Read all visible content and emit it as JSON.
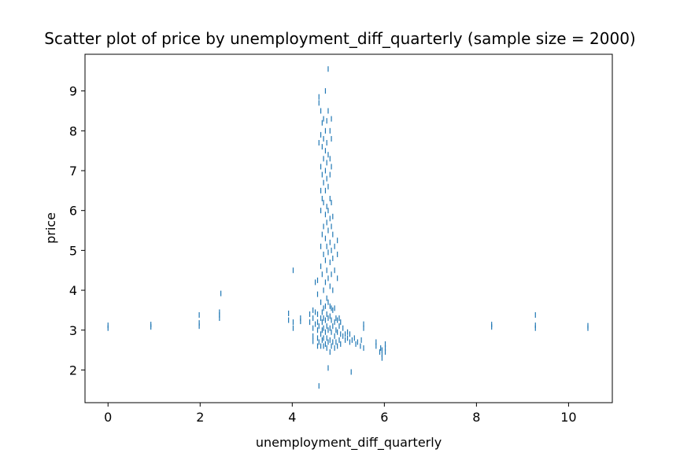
{
  "chart_data": {
    "type": "scatter",
    "title": "Scatter plot of price by unemployment_diff_quarterly (sample size = 2000)",
    "xlabel": "unemployment_diff_quarterly",
    "ylabel": "price",
    "xlim": [
      -0.5,
      10.95
    ],
    "ylim": [
      1.18,
      9.92
    ],
    "xticks": [
      0,
      2,
      4,
      6,
      8,
      10
    ],
    "yticks": [
      2,
      3,
      4,
      5,
      6,
      7,
      8,
      9
    ],
    "grid": false,
    "legend": "none",
    "marker": "|",
    "colors": {
      "points": "#1f77b4",
      "axes": "#000000"
    },
    "series": [
      {
        "points": [
          [
            0.0,
            3.05
          ],
          [
            0.0,
            3.12
          ],
          [
            0.93,
            3.08
          ],
          [
            0.93,
            3.14
          ],
          [
            1.98,
            3.1
          ],
          [
            1.98,
            3.18
          ],
          [
            1.98,
            3.38
          ],
          [
            2.42,
            3.3
          ],
          [
            2.42,
            3.38
          ],
          [
            2.42,
            3.45
          ],
          [
            2.45,
            3.92
          ],
          [
            3.92,
            3.25
          ],
          [
            3.92,
            3.42
          ],
          [
            4.02,
            3.05
          ],
          [
            4.02,
            3.2
          ],
          [
            4.02,
            4.5
          ],
          [
            4.18,
            3.22
          ],
          [
            4.18,
            3.3
          ],
          [
            4.38,
            3.4
          ],
          [
            4.38,
            3.2
          ],
          [
            4.45,
            2.72
          ],
          [
            4.45,
            2.85
          ],
          [
            4.45,
            3.05
          ],
          [
            4.45,
            3.3
          ],
          [
            4.45,
            3.5
          ],
          [
            4.5,
            3.15
          ],
          [
            4.5,
            3.45
          ],
          [
            4.5,
            4.2
          ],
          [
            4.55,
            2.6
          ],
          [
            4.55,
            2.8
          ],
          [
            4.55,
            3.0
          ],
          [
            4.55,
            3.2
          ],
          [
            4.55,
            3.4
          ],
          [
            4.55,
            3.9
          ],
          [
            4.55,
            4.25
          ],
          [
            4.58,
            1.6
          ],
          [
            4.58,
            2.7
          ],
          [
            4.58,
            3.1
          ],
          [
            4.58,
            7.7
          ],
          [
            4.58,
            8.7
          ],
          [
            4.58,
            8.85
          ],
          [
            4.62,
            2.6
          ],
          [
            4.62,
            2.9
          ],
          [
            4.62,
            3.3
          ],
          [
            4.62,
            3.7
          ],
          [
            4.62,
            4.6
          ],
          [
            4.62,
            5.1
          ],
          [
            4.62,
            6.0
          ],
          [
            4.62,
            6.5
          ],
          [
            4.62,
            7.1
          ],
          [
            4.62,
            7.9
          ],
          [
            4.62,
            8.5
          ],
          [
            4.65,
            2.75
          ],
          [
            4.65,
            3.0
          ],
          [
            4.65,
            3.2
          ],
          [
            4.65,
            3.45
          ],
          [
            4.65,
            4.4
          ],
          [
            4.65,
            5.4
          ],
          [
            4.65,
            6.3
          ],
          [
            4.65,
            6.9
          ],
          [
            4.65,
            7.6
          ],
          [
            4.65,
            8.2
          ],
          [
            4.68,
            2.6
          ],
          [
            4.68,
            2.8
          ],
          [
            4.68,
            3.05
          ],
          [
            4.68,
            3.3
          ],
          [
            4.68,
            3.55
          ],
          [
            4.68,
            4.0
          ],
          [
            4.68,
            4.9
          ],
          [
            4.68,
            5.6
          ],
          [
            4.68,
            6.2
          ],
          [
            4.68,
            6.7
          ],
          [
            4.68,
            7.3
          ],
          [
            4.68,
            7.8
          ],
          [
            4.68,
            8.3
          ],
          [
            4.72,
            2.65
          ],
          [
            4.72,
            2.95
          ],
          [
            4.72,
            3.25
          ],
          [
            4.72,
            3.6
          ],
          [
            4.72,
            4.2
          ],
          [
            4.72,
            4.75
          ],
          [
            4.72,
            5.3
          ],
          [
            4.72,
            5.9
          ],
          [
            4.72,
            6.5
          ],
          [
            4.72,
            7.0
          ],
          [
            4.72,
            7.5
          ],
          [
            4.72,
            8.0
          ],
          [
            4.72,
            9.0
          ],
          [
            4.75,
            2.55
          ],
          [
            4.75,
            2.8
          ],
          [
            4.75,
            3.1
          ],
          [
            4.75,
            3.4
          ],
          [
            4.75,
            3.8
          ],
          [
            4.75,
            4.5
          ],
          [
            4.75,
            5.1
          ],
          [
            4.75,
            5.7
          ],
          [
            4.75,
            6.1
          ],
          [
            4.75,
            6.8
          ],
          [
            4.75,
            7.2
          ],
          [
            4.75,
            7.7
          ],
          [
            4.75,
            8.25
          ],
          [
            4.78,
            2.05
          ],
          [
            4.78,
            2.7
          ],
          [
            4.78,
            3.0
          ],
          [
            4.78,
            3.3
          ],
          [
            4.78,
            3.7
          ],
          [
            4.78,
            4.3
          ],
          [
            4.78,
            4.95
          ],
          [
            4.78,
            5.5
          ],
          [
            4.78,
            6.0
          ],
          [
            4.78,
            6.6
          ],
          [
            4.78,
            7.4
          ],
          [
            4.78,
            8.5
          ],
          [
            4.78,
            9.55
          ],
          [
            4.82,
            2.45
          ],
          [
            4.82,
            2.75
          ],
          [
            4.82,
            3.05
          ],
          [
            4.82,
            3.35
          ],
          [
            4.82,
            3.6
          ],
          [
            4.82,
            4.1
          ],
          [
            4.82,
            4.7
          ],
          [
            4.82,
            5.2
          ],
          [
            4.82,
            5.8
          ],
          [
            4.82,
            6.3
          ],
          [
            4.82,
            6.9
          ],
          [
            4.82,
            7.3
          ],
          [
            4.82,
            8.0
          ],
          [
            4.85,
            2.6
          ],
          [
            4.85,
            2.95
          ],
          [
            4.85,
            3.25
          ],
          [
            4.85,
            3.55
          ],
          [
            4.85,
            4.4
          ],
          [
            4.85,
            5.0
          ],
          [
            4.85,
            5.6
          ],
          [
            4.85,
            6.2
          ],
          [
            4.85,
            7.1
          ],
          [
            4.85,
            7.8
          ],
          [
            4.85,
            8.3
          ],
          [
            4.88,
            2.7
          ],
          [
            4.88,
            3.1
          ],
          [
            4.88,
            3.5
          ],
          [
            4.88,
            4.0
          ],
          [
            4.88,
            4.8
          ],
          [
            4.88,
            5.4
          ],
          [
            4.88,
            5.85
          ],
          [
            4.92,
            2.55
          ],
          [
            4.92,
            2.85
          ],
          [
            4.92,
            3.2
          ],
          [
            4.92,
            3.55
          ],
          [
            4.92,
            4.5
          ],
          [
            4.92,
            5.1
          ],
          [
            4.95,
            2.7
          ],
          [
            4.95,
            3.0
          ],
          [
            4.95,
            3.3
          ],
          [
            4.98,
            2.6
          ],
          [
            4.98,
            2.95
          ],
          [
            4.98,
            3.25
          ],
          [
            4.98,
            4.3
          ],
          [
            4.98,
            4.9
          ],
          [
            4.98,
            5.25
          ],
          [
            5.02,
            2.75
          ],
          [
            5.02,
            3.1
          ],
          [
            5.02,
            3.3
          ],
          [
            5.05,
            2.65
          ],
          [
            5.05,
            2.9
          ],
          [
            5.05,
            3.2
          ],
          [
            5.1,
            2.85
          ],
          [
            5.1,
            3.05
          ],
          [
            5.15,
            2.75
          ],
          [
            5.15,
            2.9
          ],
          [
            5.2,
            2.8
          ],
          [
            5.2,
            2.95
          ],
          [
            5.25,
            2.7
          ],
          [
            5.25,
            2.9
          ],
          [
            5.28,
            1.95
          ],
          [
            5.3,
            2.75
          ],
          [
            5.35,
            2.8
          ],
          [
            5.38,
            2.65
          ],
          [
            5.42,
            2.7
          ],
          [
            5.48,
            2.6
          ],
          [
            5.5,
            2.75
          ],
          [
            5.55,
            2.55
          ],
          [
            5.55,
            3.05
          ],
          [
            5.55,
            3.15
          ],
          [
            5.82,
            2.6
          ],
          [
            5.82,
            2.7
          ],
          [
            5.9,
            2.45
          ],
          [
            5.92,
            2.55
          ],
          [
            5.95,
            2.3
          ],
          [
            5.95,
            2.4
          ],
          [
            5.95,
            2.5
          ],
          [
            6.02,
            2.45
          ],
          [
            6.02,
            2.55
          ],
          [
            6.02,
            2.65
          ],
          [
            8.33,
            3.08
          ],
          [
            8.33,
            3.14
          ],
          [
            9.28,
            3.05
          ],
          [
            9.28,
            3.12
          ],
          [
            9.28,
            3.38
          ],
          [
            10.42,
            3.05
          ],
          [
            10.42,
            3.11
          ]
        ]
      }
    ]
  }
}
